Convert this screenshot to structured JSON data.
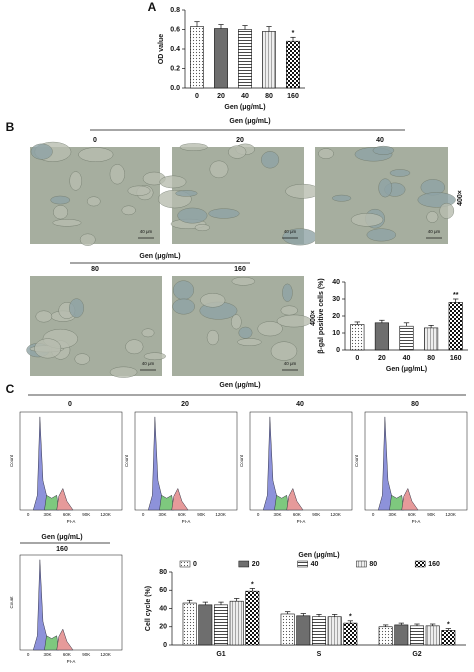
{
  "panel_labels": [
    "A",
    "B",
    "C"
  ],
  "chart_data": [
    {
      "type": "bar",
      "categories": [
        "0",
        "20",
        "40",
        "80",
        "160"
      ],
      "values": [
        0.63,
        0.61,
        0.6,
        0.58,
        0.48
      ],
      "errors": [
        0.05,
        0.04,
        0.04,
        0.05,
        0.04
      ],
      "ylim": [
        0,
        0.8
      ],
      "yticks": [
        {
          "value": 0,
          "label": "0.0"
        },
        {
          "value": 0.2,
          "label": "0.2"
        },
        {
          "value": 0.4,
          "label": "0.4"
        },
        {
          "value": 0.6,
          "label": "0.6"
        },
        {
          "value": 0.8,
          "label": "0.8"
        }
      ],
      "x_label": "Gen (μg/mL)",
      "y_label": "OD value",
      "annotations": [
        {
          "x": "160",
          "text": "*"
        }
      ]
    },
    {
      "type": "bar",
      "categories": [
        "0",
        "20",
        "40",
        "80",
        "160"
      ],
      "values": [
        15,
        16,
        14,
        13,
        28
      ],
      "errors": [
        1.5,
        1.5,
        2,
        1.5,
        2
      ],
      "ylim": [
        0,
        40
      ],
      "yticks": [
        0,
        10,
        20,
        30,
        40
      ],
      "x_label": "Gen (μg/mL)",
      "y_label": "β-gal positive cells (%)",
      "annotations": [
        {
          "x": "160",
          "text": "**"
        }
      ]
    },
    {
      "type": "grouped_bar",
      "categories": [
        "G1",
        "S",
        "G2"
      ],
      "legend_title": "Gen (μg/mL)",
      "series": [
        {
          "name": "0",
          "values": [
            46,
            34,
            20
          ],
          "errors": [
            3,
            2.5,
            2
          ]
        },
        {
          "name": "20",
          "values": [
            44,
            32,
            22
          ],
          "errors": [
            3,
            2.5,
            2
          ]
        },
        {
          "name": "40",
          "values": [
            44,
            31,
            21
          ],
          "errors": [
            3,
            2.5,
            2
          ]
        },
        {
          "name": "80",
          "values": [
            48,
            31,
            21
          ],
          "errors": [
            3,
            2.5,
            2
          ]
        },
        {
          "name": "160",
          "values": [
            59,
            24,
            16
          ],
          "errors": [
            3,
            2.5,
            2
          ]
        }
      ],
      "ylim": [
        0,
        80
      ],
      "yticks": [
        0,
        20,
        40,
        60,
        80
      ],
      "y_label": "Cell cycle (%)",
      "annotations": [
        {
          "x": "G1",
          "series": "160",
          "text": "*"
        },
        {
          "x": "S",
          "series": "160",
          "text": "*"
        },
        {
          "x": "G2",
          "series": "160",
          "text": "*"
        }
      ]
    }
  ],
  "micrographs": {
    "group_title": "Gen (μg/mL)",
    "columns": [
      "0",
      "20",
      "40",
      "80",
      "160"
    ],
    "magnification": "400×",
    "scale_bar": "40 μm"
  },
  "flow_cytometry": {
    "group_title": "Gen (μg/mL)",
    "columns": [
      "0",
      "20",
      "40",
      "80",
      "160"
    ],
    "x_label": "PI-A",
    "y_label": "Count",
    "x_ticks": [
      "0",
      "30K",
      "60K",
      "90K",
      "120K"
    ]
  }
}
